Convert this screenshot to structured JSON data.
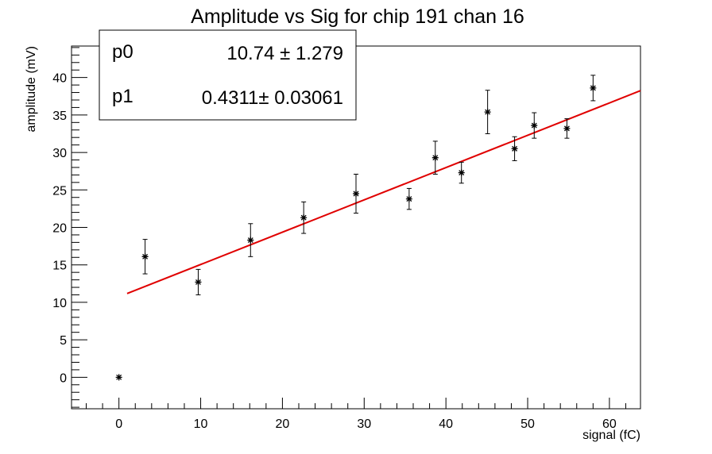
{
  "chart_data": {
    "type": "scatter",
    "title": "Amplitude vs Sig for chip 191 chan 16",
    "xlabel": "signal (fC)",
    "ylabel": "amplitude (mV)",
    "xlim": [
      -5.8,
      63.8
    ],
    "ylim": [
      -4.2,
      44.2
    ],
    "xticks": [
      0,
      10,
      20,
      30,
      40,
      50,
      60
    ],
    "yticks": [
      0,
      5,
      10,
      15,
      20,
      25,
      30,
      35,
      40
    ],
    "grid": false,
    "points": [
      {
        "x": 0.0,
        "y": 0.0,
        "err": 0.0
      },
      {
        "x": 3.2,
        "y": 16.1,
        "err": 2.3
      },
      {
        "x": 9.7,
        "y": 12.7,
        "err": 1.7
      },
      {
        "x": 16.1,
        "y": 18.3,
        "err": 2.2
      },
      {
        "x": 22.6,
        "y": 21.3,
        "err": 2.1
      },
      {
        "x": 29.0,
        "y": 24.5,
        "err": 2.6
      },
      {
        "x": 35.5,
        "y": 23.8,
        "err": 1.4
      },
      {
        "x": 38.7,
        "y": 29.3,
        "err": 2.2
      },
      {
        "x": 41.9,
        "y": 27.3,
        "err": 1.4
      },
      {
        "x": 45.1,
        "y": 35.4,
        "err": 2.9
      },
      {
        "x": 48.4,
        "y": 30.5,
        "err": 1.6
      },
      {
        "x": 50.8,
        "y": 33.6,
        "err": 1.7
      },
      {
        "x": 54.8,
        "y": 33.2,
        "err": 1.3
      },
      {
        "x": 58.0,
        "y": 38.6,
        "err": 1.7
      }
    ],
    "fit": {
      "x_range": [
        1.0,
        63.8
      ],
      "color": "#e00000",
      "params": [
        {
          "name": "p0",
          "value": "10.74",
          "error": "1.279",
          "v": 10.74
        },
        {
          "name": "p1",
          "value": "0.4311",
          "error": "0.03061",
          "v": 0.4311
        }
      ]
    }
  }
}
